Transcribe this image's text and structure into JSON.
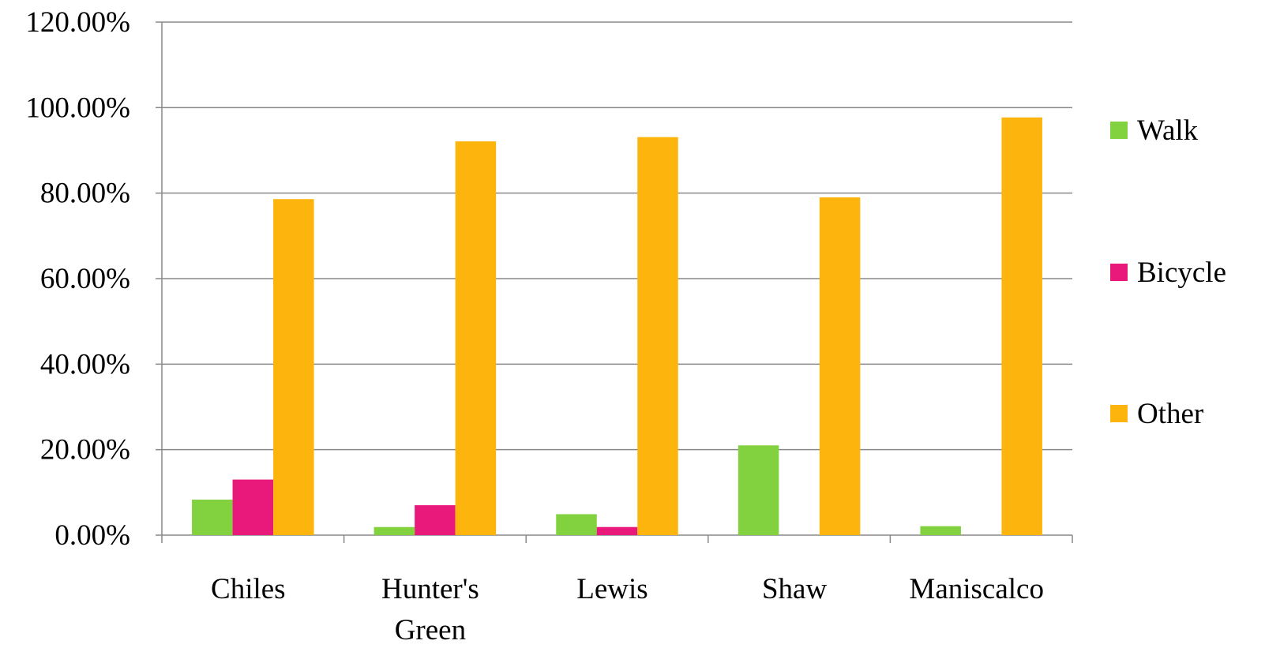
{
  "chart_data": {
    "type": "bar",
    "title": "",
    "xlabel": "",
    "ylabel": "",
    "ylim": [
      0,
      1.2
    ],
    "y_format": "percent_2dp",
    "y_ticks": [
      "0.00%",
      "20.00%",
      "40.00%",
      "60.00%",
      "80.00%",
      "100.00%",
      "120.00%"
    ],
    "grid": true,
    "legend_position": "right",
    "categories": [
      [
        "Chiles"
      ],
      [
        "Hunter's",
        "Green"
      ],
      [
        "Lewis"
      ],
      [
        "Shaw"
      ],
      [
        "Maniscalco"
      ]
    ],
    "series": [
      {
        "name": "Walk",
        "color": "#82d13f",
        "values": [
          0.083,
          0.019,
          0.049,
          0.21,
          0.021
        ]
      },
      {
        "name": "Bicycle",
        "color": "#e8197a",
        "values": [
          0.13,
          0.07,
          0.019,
          0.0,
          0.0
        ]
      },
      {
        "name": "Other",
        "color": "#fdb50e",
        "values": [
          0.786,
          0.921,
          0.931,
          0.79,
          0.977
        ]
      }
    ],
    "axis_color": "#888888",
    "grid_color": "#888888"
  }
}
